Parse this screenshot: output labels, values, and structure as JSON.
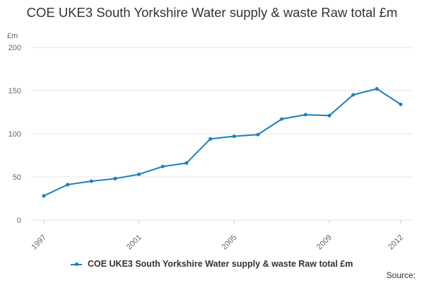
{
  "chart_data": {
    "type": "line",
    "title": "COE UKE3 South Yorkshire Water supply & waste Raw total £m",
    "unit_label": "£m",
    "xlabel": "",
    "ylabel": "",
    "ylim": [
      0,
      200
    ],
    "y_ticks": [
      "0",
      "50",
      "100",
      "150",
      "200"
    ],
    "x": [
      1997,
      1998,
      1999,
      2000,
      2001,
      2002,
      2003,
      2004,
      2005,
      2006,
      2007,
      2008,
      2009,
      2010,
      2011,
      2012
    ],
    "x_tick_labels": [
      "1997",
      "2001",
      "2005",
      "2009",
      "2012"
    ],
    "series": [
      {
        "name": "COE UKE3 South Yorkshire Water supply & waste Raw total £m",
        "color": "#1a7fbf",
        "values": [
          28,
          41,
          45,
          48,
          53,
          62,
          66,
          94,
          97,
          99,
          117,
          122,
          121,
          145,
          152,
          134
        ]
      }
    ],
    "grid": true,
    "legend_position": "bottom"
  },
  "footer": {
    "source_label": "Source:"
  }
}
